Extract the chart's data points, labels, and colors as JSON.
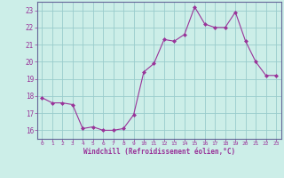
{
  "x": [
    0,
    1,
    2,
    3,
    4,
    5,
    6,
    7,
    8,
    9,
    10,
    11,
    12,
    13,
    14,
    15,
    16,
    17,
    18,
    19,
    20,
    21,
    22,
    23
  ],
  "y": [
    17.9,
    17.6,
    17.6,
    17.5,
    16.1,
    16.2,
    16.0,
    16.0,
    16.1,
    16.9,
    19.4,
    19.9,
    21.3,
    21.2,
    21.6,
    23.2,
    22.2,
    22.0,
    22.0,
    22.9,
    21.2,
    20.0,
    19.2,
    19.2
  ],
  "xlabel": "Windchill (Refroidissement éolien,°C)",
  "ylim": [
    15.5,
    23.5
  ],
  "xlim": [
    -0.5,
    23.5
  ],
  "yticks": [
    16,
    17,
    18,
    19,
    20,
    21,
    22,
    23
  ],
  "xticks": [
    0,
    1,
    2,
    3,
    4,
    5,
    6,
    7,
    8,
    9,
    10,
    11,
    12,
    13,
    14,
    15,
    16,
    17,
    18,
    19,
    20,
    21,
    22,
    23
  ],
  "line_color": "#993399",
  "bg_color": "#cceee8",
  "grid_color": "#99cccc",
  "axis_color": "#993399",
  "tick_color": "#993399",
  "label_color": "#993399",
  "spine_color": "#666699"
}
